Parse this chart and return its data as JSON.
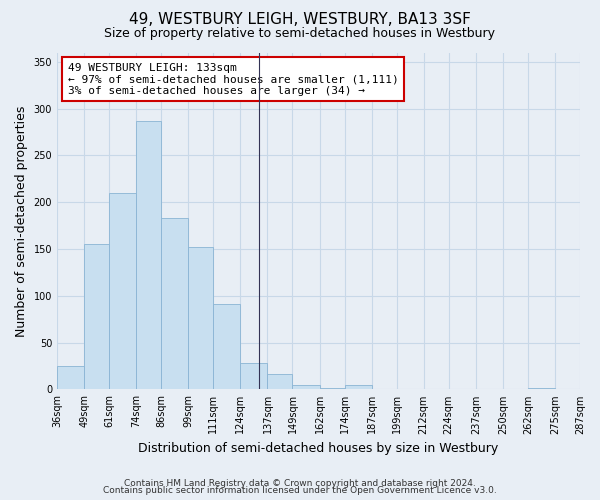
{
  "title": "49, WESTBURY LEIGH, WESTBURY, BA13 3SF",
  "subtitle": "Size of property relative to semi-detached houses in Westbury",
  "xlabel": "Distribution of semi-detached houses by size in Westbury",
  "ylabel": "Number of semi-detached properties",
  "bin_edges": [
    36,
    49,
    61,
    74,
    86,
    99,
    111,
    124,
    137,
    149,
    162,
    174,
    187,
    199,
    212,
    224,
    237,
    250,
    262,
    275,
    287
  ],
  "bin_labels": [
    "36sqm",
    "49sqm",
    "61sqm",
    "74sqm",
    "86sqm",
    "99sqm",
    "111sqm",
    "124sqm",
    "137sqm",
    "149sqm",
    "162sqm",
    "174sqm",
    "187sqm",
    "199sqm",
    "212sqm",
    "224sqm",
    "237sqm",
    "250sqm",
    "262sqm",
    "275sqm",
    "287sqm"
  ],
  "bar_heights": [
    25,
    155,
    210,
    287,
    183,
    152,
    91,
    28,
    16,
    5,
    1,
    5,
    0,
    0,
    0,
    0,
    0,
    0,
    1,
    0,
    0
  ],
  "bar_color": "#c8dff0",
  "bar_edge_color": "#8ab4d4",
  "property_line_x": 133,
  "property_line_color": "#333355",
  "ylim": [
    0,
    360
  ],
  "yticks": [
    0,
    50,
    100,
    150,
    200,
    250,
    300,
    350
  ],
  "annotation_title": "49 WESTBURY LEIGH: 133sqm",
  "annotation_line1": "← 97% of semi-detached houses are smaller (1,111)",
  "annotation_line2": "3% of semi-detached houses are larger (34) →",
  "annotation_box_color": "#ffffff",
  "annotation_box_edge": "#cc0000",
  "footer1": "Contains HM Land Registry data © Crown copyright and database right 2024.",
  "footer2": "Contains public sector information licensed under the Open Government Licence v3.0.",
  "background_color": "#e8eef5",
  "grid_color": "#c8d8e8",
  "title_fontsize": 11,
  "subtitle_fontsize": 9,
  "axis_label_fontsize": 9,
  "tick_fontsize": 7,
  "footer_fontsize": 6.5,
  "annotation_fontsize": 8
}
